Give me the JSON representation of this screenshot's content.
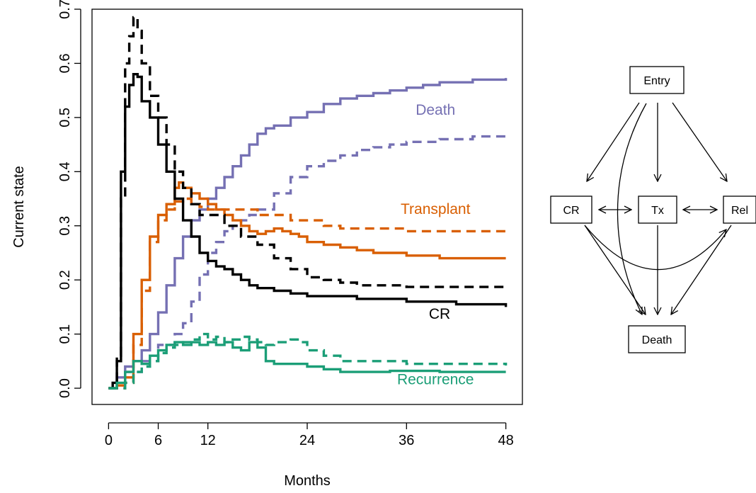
{
  "chart_data": [
    {
      "type": "line",
      "title": "",
      "xlabel": "Months",
      "ylabel": "Current state",
      "xlim": [
        -2,
        50
      ],
      "ylim": [
        -0.03,
        0.7
      ],
      "x_ticks": [
        0,
        6,
        12,
        24,
        36,
        48
      ],
      "y_ticks": [
        0.0,
        0.1,
        0.2,
        0.3,
        0.4,
        0.5,
        0.6,
        0.7
      ],
      "x_tick_labels": [
        "0",
        "6",
        "12",
        "24",
        "36",
        "48"
      ],
      "y_tick_labels": [
        "0.0",
        "0.1",
        "0.2",
        "0.3",
        "0.4",
        "0.5",
        "0.6",
        "0.7"
      ],
      "grid": false,
      "legend": "none",
      "series": [
        {
          "name": "Death",
          "color": "#7570b3",
          "style": "solid",
          "label_x": 39.5,
          "label_y": 0.505,
          "points": [
            [
              0,
              0
            ],
            [
              1,
              0.02
            ],
            [
              2,
              0.04
            ],
            [
              3,
              0.05
            ],
            [
              4,
              0.07
            ],
            [
              5,
              0.1
            ],
            [
              6,
              0.14
            ],
            [
              7,
              0.19
            ],
            [
              8,
              0.24
            ],
            [
              9,
              0.28
            ],
            [
              10,
              0.31
            ],
            [
              11,
              0.33
            ],
            [
              12,
              0.35
            ],
            [
              13,
              0.37
            ],
            [
              14,
              0.39
            ],
            [
              15,
              0.41
            ],
            [
              16,
              0.43
            ],
            [
              17,
              0.45
            ],
            [
              18,
              0.47
            ],
            [
              19,
              0.48
            ],
            [
              20,
              0.485
            ],
            [
              22,
              0.5
            ],
            [
              24,
              0.51
            ],
            [
              26,
              0.525
            ],
            [
              28,
              0.535
            ],
            [
              30,
              0.54
            ],
            [
              32,
              0.545
            ],
            [
              34,
              0.55
            ],
            [
              36,
              0.555
            ],
            [
              38,
              0.56
            ],
            [
              40,
              0.565
            ],
            [
              44,
              0.57
            ],
            [
              48,
              0.573
            ]
          ]
        },
        {
          "name": "",
          "color": "#7570b3",
          "style": "dashed",
          "points": [
            [
              0,
              0
            ],
            [
              2,
              0.03
            ],
            [
              4,
              0.05
            ],
            [
              6,
              0.08
            ],
            [
              8,
              0.1
            ],
            [
              9,
              0.12
            ],
            [
              10,
              0.16
            ],
            [
              11,
              0.21
            ],
            [
              12,
              0.25
            ],
            [
              13,
              0.27
            ],
            [
              14,
              0.29
            ],
            [
              15,
              0.3
            ],
            [
              16,
              0.31
            ],
            [
              17,
              0.32
            ],
            [
              18,
              0.33
            ],
            [
              20,
              0.36
            ],
            [
              22,
              0.39
            ],
            [
              24,
              0.41
            ],
            [
              26,
              0.42
            ],
            [
              28,
              0.43
            ],
            [
              30,
              0.44
            ],
            [
              32,
              0.445
            ],
            [
              34,
              0.45
            ],
            [
              36,
              0.455
            ],
            [
              40,
              0.46
            ],
            [
              44,
              0.465
            ],
            [
              48,
              0.467
            ]
          ]
        },
        {
          "name": "Transplant",
          "color": "#d95f02",
          "style": "solid",
          "label_x": 39.5,
          "label_y": 0.322,
          "points": [
            [
              0,
              0
            ],
            [
              1,
              0.005
            ],
            [
              2,
              0.02
            ],
            [
              3,
              0.1
            ],
            [
              4,
              0.2
            ],
            [
              5,
              0.28
            ],
            [
              6,
              0.32
            ],
            [
              7,
              0.34
            ],
            [
              8,
              0.37
            ],
            [
              8.5,
              0.38
            ],
            [
              9,
              0.37
            ],
            [
              10,
              0.36
            ],
            [
              11,
              0.35
            ],
            [
              12,
              0.34
            ],
            [
              13,
              0.33
            ],
            [
              14,
              0.32
            ],
            [
              15,
              0.31
            ],
            [
              16,
              0.3
            ],
            [
              17,
              0.29
            ],
            [
              18,
              0.285
            ],
            [
              19,
              0.29
            ],
            [
              20,
              0.295
            ],
            [
              21,
              0.29
            ],
            [
              22,
              0.285
            ],
            [
              23,
              0.28
            ],
            [
              24,
              0.27
            ],
            [
              26,
              0.265
            ],
            [
              28,
              0.26
            ],
            [
              30,
              0.255
            ],
            [
              32,
              0.25
            ],
            [
              36,
              0.245
            ],
            [
              40,
              0.24
            ],
            [
              48,
              0.24
            ]
          ]
        },
        {
          "name": "",
          "color": "#d95f02",
          "style": "dashed",
          "points": [
            [
              0,
              0
            ],
            [
              2,
              0.01
            ],
            [
              3,
              0.08
            ],
            [
              4,
              0.18
            ],
            [
              5,
              0.27
            ],
            [
              6,
              0.31
            ],
            [
              7,
              0.33
            ],
            [
              8,
              0.345
            ],
            [
              9,
              0.35
            ],
            [
              10,
              0.34
            ],
            [
              11,
              0.335
            ],
            [
              12,
              0.33
            ],
            [
              14,
              0.33
            ],
            [
              16,
              0.33
            ],
            [
              18,
              0.32
            ],
            [
              20,
              0.32
            ],
            [
              22,
              0.31
            ],
            [
              24,
              0.31
            ],
            [
              26,
              0.3
            ],
            [
              28,
              0.295
            ],
            [
              30,
              0.295
            ],
            [
              36,
              0.29
            ],
            [
              42,
              0.29
            ],
            [
              48,
              0.288
            ]
          ]
        },
        {
          "name": "CR",
          "color": "#000000",
          "style": "solid",
          "label_x": 40,
          "label_y": 0.128,
          "points": [
            [
              0,
              0
            ],
            [
              0.5,
              0.01
            ],
            [
              1,
              0.05
            ],
            [
              1.5,
              0.4
            ],
            [
              2,
              0.52
            ],
            [
              2.5,
              0.56
            ],
            [
              3,
              0.58
            ],
            [
              3.5,
              0.575
            ],
            [
              4,
              0.53
            ],
            [
              5,
              0.5
            ],
            [
              6,
              0.45
            ],
            [
              7,
              0.4
            ],
            [
              8,
              0.35
            ],
            [
              9,
              0.31
            ],
            [
              10,
              0.28
            ],
            [
              11,
              0.25
            ],
            [
              12,
              0.235
            ],
            [
              13,
              0.225
            ],
            [
              14,
              0.22
            ],
            [
              15,
              0.21
            ],
            [
              16,
              0.2
            ],
            [
              17,
              0.19
            ],
            [
              18,
              0.185
            ],
            [
              20,
              0.18
            ],
            [
              22,
              0.175
            ],
            [
              24,
              0.17
            ],
            [
              30,
              0.165
            ],
            [
              36,
              0.16
            ],
            [
              42,
              0.155
            ],
            [
              48,
              0.15
            ]
          ]
        },
        {
          "name": "",
          "color": "#000000",
          "style": "dashed",
          "points": [
            [
              0,
              0
            ],
            [
              1,
              0.06
            ],
            [
              1.5,
              0.35
            ],
            [
              2,
              0.6
            ],
            [
              2.5,
              0.65
            ],
            [
              3,
              0.685
            ],
            [
              3.5,
              0.66
            ],
            [
              4,
              0.6
            ],
            [
              5,
              0.54
            ],
            [
              6,
              0.5
            ],
            [
              7,
              0.45
            ],
            [
              8,
              0.4
            ],
            [
              9,
              0.37
            ],
            [
              10,
              0.34
            ],
            [
              11,
              0.32
            ],
            [
              12,
              0.32
            ],
            [
              14,
              0.3
            ],
            [
              16,
              0.28
            ],
            [
              18,
              0.265
            ],
            [
              20,
              0.24
            ],
            [
              22,
              0.22
            ],
            [
              24,
              0.205
            ],
            [
              26,
              0.2
            ],
            [
              28,
              0.195
            ],
            [
              30,
              0.19
            ],
            [
              36,
              0.187
            ],
            [
              48,
              0.187
            ]
          ]
        },
        {
          "name": "Recurrence",
          "color": "#1b9e77",
          "style": "solid",
          "label_x": 39.5,
          "label_y": 0.007,
          "points": [
            [
              0,
              0
            ],
            [
              1,
              0.01
            ],
            [
              2,
              0.03
            ],
            [
              3,
              0.05
            ],
            [
              4,
              0.045
            ],
            [
              5,
              0.06
            ],
            [
              6,
              0.07
            ],
            [
              7,
              0.08
            ],
            [
              8,
              0.085
            ],
            [
              9,
              0.08
            ],
            [
              10,
              0.085
            ],
            [
              11,
              0.08
            ],
            [
              12,
              0.085
            ],
            [
              13,
              0.08
            ],
            [
              14,
              0.085
            ],
            [
              15,
              0.075
            ],
            [
              16,
              0.07
            ],
            [
              17,
              0.085
            ],
            [
              18,
              0.075
            ],
            [
              19,
              0.05
            ],
            [
              20,
              0.045
            ],
            [
              24,
              0.04
            ],
            [
              26,
              0.035
            ],
            [
              28,
              0.03
            ],
            [
              34,
              0.032
            ],
            [
              40,
              0.03
            ],
            [
              48,
              0.03
            ]
          ]
        },
        {
          "name": "",
          "color": "#1b9e77",
          "style": "dashed",
          "points": [
            [
              0,
              0
            ],
            [
              2,
              0.01
            ],
            [
              3,
              0.03
            ],
            [
              4,
              0.04
            ],
            [
              5,
              0.05
            ],
            [
              6,
              0.065
            ],
            [
              7,
              0.075
            ],
            [
              8,
              0.08
            ],
            [
              9,
              0.085
            ],
            [
              10,
              0.09
            ],
            [
              11,
              0.1
            ],
            [
              12,
              0.09
            ],
            [
              13,
              0.095
            ],
            [
              14,
              0.085
            ],
            [
              15,
              0.09
            ],
            [
              16,
              0.095
            ],
            [
              17,
              0.09
            ],
            [
              18,
              0.085
            ],
            [
              19,
              0.08
            ],
            [
              20,
              0.085
            ],
            [
              22,
              0.09
            ],
            [
              23,
              0.085
            ],
            [
              24,
              0.07
            ],
            [
              26,
              0.06
            ],
            [
              28,
              0.05
            ],
            [
              30,
              0.05
            ],
            [
              36,
              0.045
            ],
            [
              40,
              0.045
            ],
            [
              48,
              0.042
            ]
          ]
        }
      ]
    },
    {
      "type": "diagram",
      "nodes": [
        {
          "id": "entry",
          "label": "Entry"
        },
        {
          "id": "cr",
          "label": "CR"
        },
        {
          "id": "tx",
          "label": "Tx"
        },
        {
          "id": "rel",
          "label": "Rel"
        },
        {
          "id": "death",
          "label": "Death"
        }
      ],
      "edges": [
        {
          "from": "entry",
          "to": "cr"
        },
        {
          "from": "entry",
          "to": "tx"
        },
        {
          "from": "entry",
          "to": "rel"
        },
        {
          "from": "entry",
          "to": "death"
        },
        {
          "from": "cr",
          "to": "tx",
          "bidirectional": true
        },
        {
          "from": "tx",
          "to": "rel",
          "bidirectional": true
        },
        {
          "from": "cr",
          "to": "rel"
        },
        {
          "from": "cr",
          "to": "death"
        },
        {
          "from": "tx",
          "to": "death"
        },
        {
          "from": "rel",
          "to": "death"
        }
      ]
    }
  ]
}
